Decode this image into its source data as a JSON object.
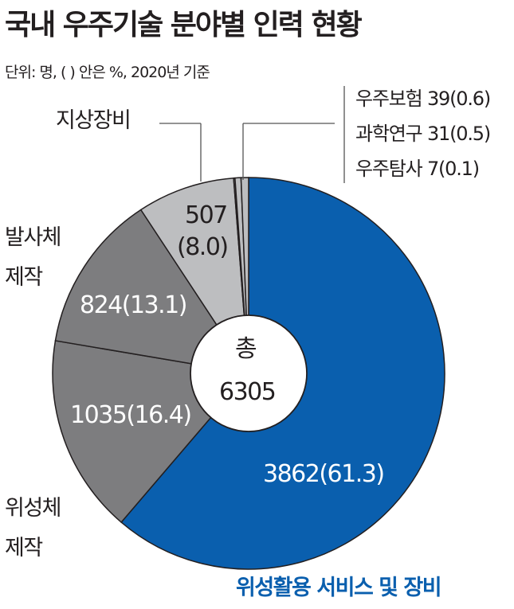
{
  "title": "국내 우주기술 분야별 인력 현황",
  "unit_note": "단위: 명, ( ) 안은 %, 2020년 기준",
  "chart_data": {
    "type": "pie",
    "title": "국내 우주기술 분야별 인력 현황",
    "center_label": "총",
    "total": "6305",
    "slices": [
      {
        "category": "위성활용 서비스 및 장비",
        "value": 3862,
        "percent": 61.3,
        "value_label": "3862(61.3)",
        "color": "#0a5fae"
      },
      {
        "category": "위성체 제작",
        "category_lines": [
          "위성체",
          "제작"
        ],
        "value": 1035,
        "percent": 16.4,
        "value_label": "1035(16.4)",
        "color": "#7d7d7f"
      },
      {
        "category": "발사체 제작",
        "category_lines": [
          "발사체",
          "제작"
        ],
        "value": 824,
        "percent": 13.1,
        "value_label": "824(13.1)",
        "color": "#7d7d7f"
      },
      {
        "category": "지상장비",
        "value": 507,
        "percent": 8.0,
        "value_label_lines": [
          "507",
          "(8.0)"
        ],
        "color": "#bdbec0"
      },
      {
        "category": "우주탐사",
        "value": 7,
        "percent": 0.1,
        "value_label": "우주탐사 7(0.1)",
        "color": "#bdbec0"
      },
      {
        "category": "과학연구",
        "value": 31,
        "percent": 0.5,
        "value_label": "과학연구 31(0.5)",
        "color": "#bdbec0"
      },
      {
        "category": "우주보험",
        "value": 39,
        "percent": 0.6,
        "value_label": "우주보험 39(0.6)",
        "color": "#bdbec0"
      }
    ]
  }
}
